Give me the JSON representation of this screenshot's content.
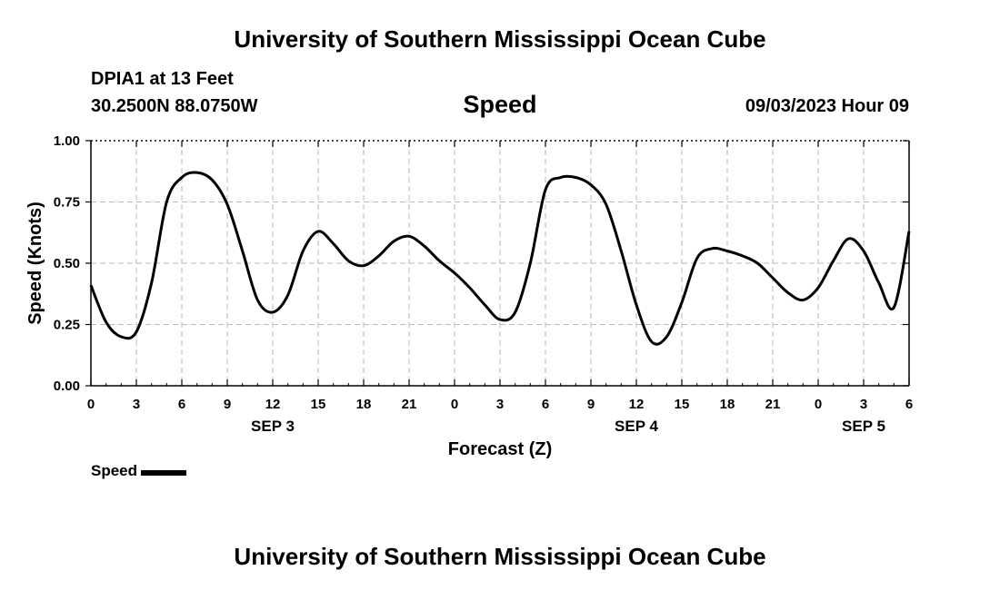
{
  "header": {
    "title": "University of Southern Mississippi Ocean Cube",
    "station": "DPIA1 at 13 Feet",
    "coords": "30.2500N  88.0750W",
    "timestamp": "09/03/2023 Hour 09"
  },
  "footer": {
    "title": "University of Southern Mississippi Ocean Cube"
  },
  "legend": {
    "label": "Speed"
  },
  "chart_data": {
    "type": "line",
    "title": "Speed",
    "xlabel": "Forecast (Z)",
    "ylabel": "Speed (Knots)",
    "ylim": [
      0,
      1.0
    ],
    "xlim": [
      0,
      54
    ],
    "grid": true,
    "legend_position": "bottom-left",
    "y_ticks": [
      "0.00",
      "0.25",
      "0.50",
      "0.75",
      "1.00"
    ],
    "x_tick_labels": [
      "0",
      "3",
      "6",
      "9",
      "12",
      "15",
      "18",
      "21",
      "0",
      "3",
      "6",
      "9",
      "12",
      "15",
      "18",
      "21",
      "0",
      "3",
      "6"
    ],
    "date_labels": [
      {
        "label": "SEP 3",
        "x": 12
      },
      {
        "label": "SEP 4",
        "x": 36
      },
      {
        "label": "SEP 5",
        "x": 51
      }
    ],
    "series": [
      {
        "name": "Speed",
        "color": "#000000",
        "x": [
          0,
          1,
          2,
          3,
          4,
          5,
          6,
          7,
          8,
          9,
          10,
          11,
          12,
          13,
          14,
          15,
          16,
          17,
          18,
          19,
          20,
          21,
          22,
          23,
          24,
          25,
          26,
          27,
          28,
          29,
          30,
          31,
          32,
          33,
          34,
          35,
          36,
          37,
          38,
          39,
          40,
          41,
          42,
          43,
          44,
          45,
          46,
          47,
          48,
          49,
          50,
          51,
          52,
          53,
          54
        ],
        "values": [
          0.41,
          0.26,
          0.2,
          0.22,
          0.42,
          0.75,
          0.85,
          0.87,
          0.84,
          0.74,
          0.55,
          0.35,
          0.3,
          0.37,
          0.55,
          0.63,
          0.58,
          0.51,
          0.49,
          0.53,
          0.59,
          0.61,
          0.57,
          0.51,
          0.46,
          0.4,
          0.33,
          0.27,
          0.3,
          0.5,
          0.8,
          0.85,
          0.85,
          0.82,
          0.74,
          0.55,
          0.33,
          0.18,
          0.2,
          0.34,
          0.52,
          0.56,
          0.55,
          0.53,
          0.5,
          0.44,
          0.38,
          0.35,
          0.4,
          0.51,
          0.6,
          0.55,
          0.42,
          0.32,
          0.63
        ]
      }
    ]
  }
}
